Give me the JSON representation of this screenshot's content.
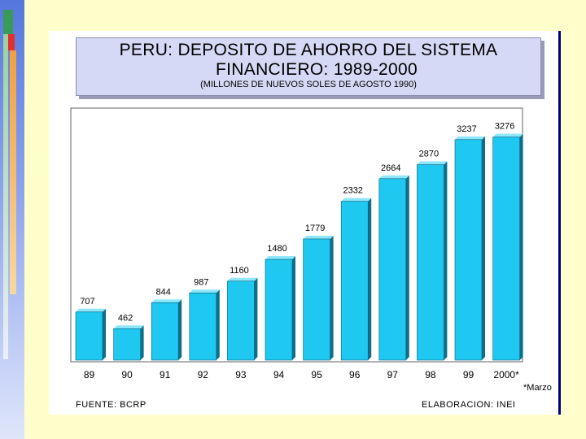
{
  "title": {
    "line1": "PERU: DEPOSITO DE AHORRO DEL SISTEMA",
    "line2": "FINANCIERO: 1989-2000",
    "subtitle": "(MILLONES DE NUEVOS SOLES DE AGOSTO 1990)"
  },
  "footnote": "*Marzo",
  "source": "FUENTE: BCRP",
  "elaboration": "ELABORACION: INEI",
  "colors": {
    "bar_front": "#1ec8f0",
    "bar_side": "#0e6f8a",
    "bar_top": "#8ee6fa",
    "title_box": "#d6d9f5",
    "background": "#ffffcc"
  },
  "chart_data": {
    "type": "bar",
    "categories": [
      "89",
      "90",
      "91",
      "92",
      "93",
      "94",
      "95",
      "96",
      "97",
      "98",
      "99",
      "2000*"
    ],
    "values": [
      707,
      462,
      844,
      987,
      1160,
      1480,
      1779,
      2332,
      2664,
      2870,
      3237,
      3276
    ],
    "data_labels": [
      "707",
      "462",
      "844",
      "987",
      "1160",
      "1480",
      "1779",
      "2332",
      "2664",
      "2870",
      "3237",
      "3276"
    ],
    "title": "PERU: DEPOSITO DE AHORRO DEL SISTEMA FINANCIERO: 1989-2000",
    "subtitle": "(MILLONES DE NUEVOS SOLES DE AGOSTO 1990)",
    "xlabel": "",
    "ylabel": "",
    "ylim": [
      0,
      3700
    ],
    "grid": false,
    "legend": "none"
  }
}
